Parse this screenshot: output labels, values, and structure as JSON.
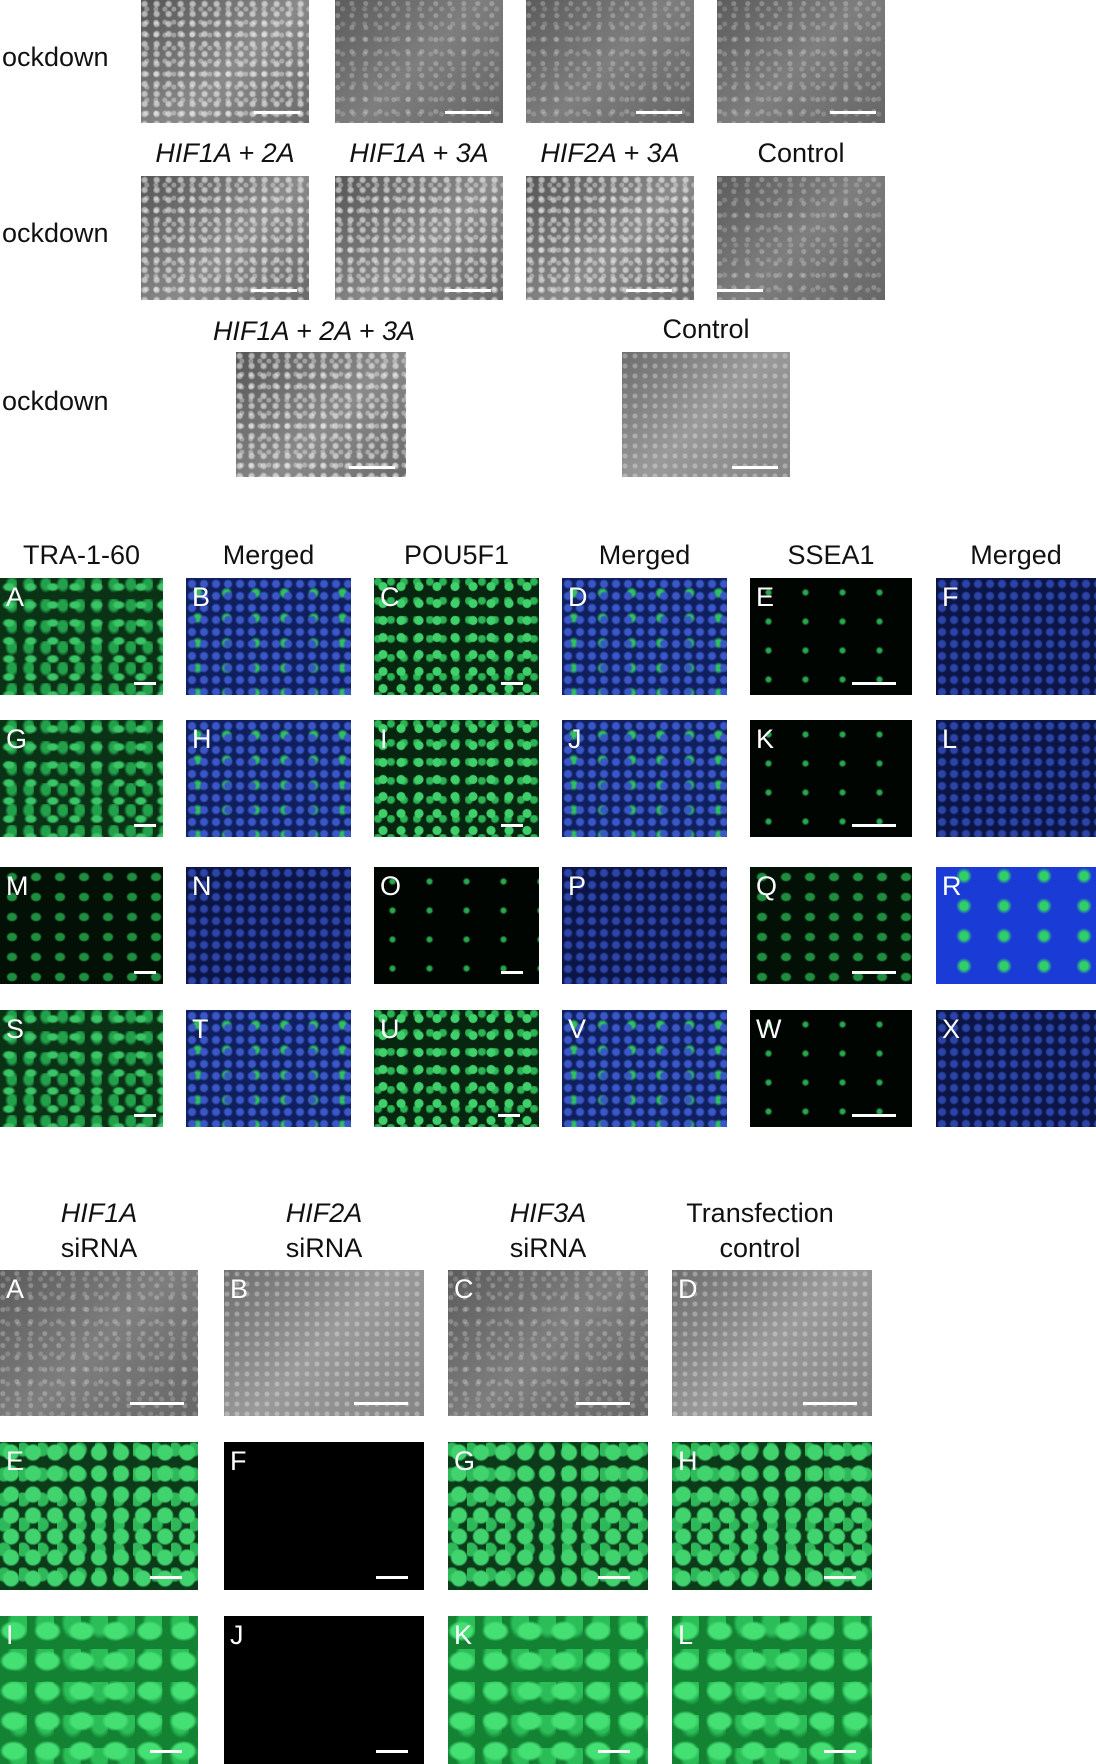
{
  "top": {
    "row1": {
      "side_label": "ockdown"
    },
    "row2": {
      "side_label": "ockdown",
      "headers": [
        {
          "text": "HIF1A + 2A",
          "italic": true
        },
        {
          "text": "HIF1A + 3A",
          "italic": true
        },
        {
          "text": "HIF2A + 3A",
          "italic": true
        },
        {
          "text": "Control",
          "italic": false
        }
      ]
    },
    "row3": {
      "side_label": "ockdown",
      "headers": [
        {
          "text": "HIF1A + 2A + 3A",
          "italic": true
        },
        {
          "text": "Control",
          "italic": false
        }
      ]
    }
  },
  "middle": {
    "headers": [
      "TRA-1-60",
      "Merged",
      "POU5F1",
      "Merged",
      "SSEA1",
      "Merged"
    ],
    "rows": [
      [
        "A",
        "B",
        "C",
        "D",
        "E",
        "F"
      ],
      [
        "G",
        "H",
        "I",
        "J",
        "K",
        "L"
      ],
      [
        "M",
        "N",
        "O",
        "P",
        "Q",
        "R"
      ],
      [
        "S",
        "T",
        "U",
        "V",
        "W",
        "X"
      ]
    ]
  },
  "bottom": {
    "headers": [
      {
        "line1": "HIF1A",
        "line1_italic": true,
        "line2": "siRNA"
      },
      {
        "line1": "HIF2A",
        "line1_italic": true,
        "line2": "siRNA"
      },
      {
        "line1": "HIF3A",
        "line1_italic": true,
        "line2": "siRNA"
      },
      {
        "line1": "Transfection",
        "line1_italic": false,
        "line2": "control"
      }
    ],
    "rows": [
      [
        "A",
        "B",
        "C",
        "D"
      ],
      [
        "E",
        "F",
        "G",
        "H"
      ],
      [
        "I",
        "J",
        "K",
        "L"
      ]
    ]
  }
}
